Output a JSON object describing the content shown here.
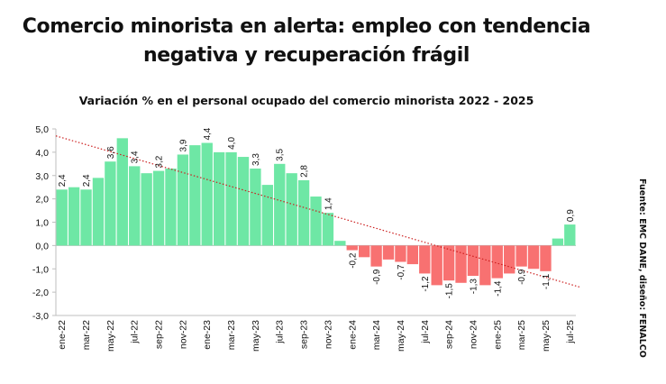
{
  "header": {
    "title_line1": "Comercio minorista en alerta: empleo con tendencia",
    "title_line2": "negativa y recuperación frágil"
  },
  "source": "Fuente: EMC DANE, diseño: FENALCO",
  "colors": {
    "positive": "#6ee7a5",
    "negative": "#f87171",
    "trend": "#cc1f1f",
    "axis": "#bfbfbf"
  },
  "chart_data": {
    "type": "bar",
    "title": "Variación % en el personal ocupado del comercio minorista 2022 - 2025",
    "xlabel": "",
    "ylabel": "",
    "ylim": [
      -3,
      5
    ],
    "yticks": [
      "5,0",
      "4,0",
      "3,0",
      "2,0",
      "1,0",
      "0,0",
      "-1,0",
      "-2,0",
      "-3,0"
    ],
    "ytick_values": [
      5,
      4,
      3,
      2,
      1,
      0,
      -1,
      -2,
      -3
    ],
    "categories": [
      "ene-22",
      "feb-22",
      "mar-22",
      "abr-22",
      "may-22",
      "jun-22",
      "jul-22",
      "ago-22",
      "sep-22",
      "oct-22",
      "nov-22",
      "dic-22",
      "ene-23",
      "feb-23",
      "mar-23",
      "abr-23",
      "may-23",
      "jun-23",
      "jul-23",
      "ago-23",
      "sep-23",
      "oct-23",
      "nov-23",
      "dic-23",
      "ene-24",
      "feb-24",
      "mar-24",
      "abr-24",
      "may-24",
      "jun-24",
      "jul-24",
      "ago-24",
      "sep-24",
      "oct-24",
      "nov-24",
      "dic-24",
      "ene-25",
      "feb-25",
      "mar-25",
      "abr-25",
      "may-25",
      "jun-25",
      "jul-25"
    ],
    "values": [
      2.4,
      2.5,
      2.4,
      2.9,
      3.6,
      4.6,
      3.4,
      3.1,
      3.2,
      3.3,
      3.9,
      4.3,
      4.4,
      4.0,
      4.0,
      3.8,
      3.3,
      2.6,
      3.5,
      3.1,
      2.8,
      2.1,
      1.4,
      0.2,
      -0.2,
      -0.5,
      -0.9,
      -0.6,
      -0.7,
      -0.8,
      -1.2,
      -1.7,
      -1.5,
      -1.6,
      -1.3,
      -1.7,
      -1.4,
      -1.2,
      -0.9,
      -1.0,
      -1.1,
      0.3,
      0.9
    ],
    "data_labels": [
      {
        "index": 0,
        "text": "2,4"
      },
      {
        "index": 2,
        "text": "2,4"
      },
      {
        "index": 4,
        "text": "3,6"
      },
      {
        "index": 6,
        "text": "3,4"
      },
      {
        "index": 8,
        "text": "3,2"
      },
      {
        "index": 10,
        "text": "3,9"
      },
      {
        "index": 12,
        "text": "4,4"
      },
      {
        "index": 14,
        "text": "4,0"
      },
      {
        "index": 16,
        "text": "3,3"
      },
      {
        "index": 18,
        "text": "3,5"
      },
      {
        "index": 20,
        "text": "2,8"
      },
      {
        "index": 22,
        "text": "1,4"
      },
      {
        "index": 24,
        "text": "-0,2"
      },
      {
        "index": 26,
        "text": "-0,9"
      },
      {
        "index": 28,
        "text": "-0,7"
      },
      {
        "index": 30,
        "text": "-1,2"
      },
      {
        "index": 32,
        "text": "-1,5"
      },
      {
        "index": 34,
        "text": "-1,3"
      },
      {
        "index": 36,
        "text": "-1,4"
      },
      {
        "index": 38,
        "text": "-0,9"
      },
      {
        "index": 40,
        "text": "-1,1"
      },
      {
        "index": 42,
        "text": "0,9"
      }
    ],
    "xtick_labels": [
      {
        "index": 0,
        "text": "ene-22"
      },
      {
        "index": 2,
        "text": "mar-22"
      },
      {
        "index": 4,
        "text": "may-22"
      },
      {
        "index": 6,
        "text": "jul-22"
      },
      {
        "index": 8,
        "text": "sep-22"
      },
      {
        "index": 10,
        "text": "nov-22"
      },
      {
        "index": 12,
        "text": "ene-23"
      },
      {
        "index": 14,
        "text": "mar-23"
      },
      {
        "index": 16,
        "text": "may-23"
      },
      {
        "index": 18,
        "text": "jul-23"
      },
      {
        "index": 20,
        "text": "sep-23"
      },
      {
        "index": 22,
        "text": "nov-23"
      },
      {
        "index": 24,
        "text": "ene-24"
      },
      {
        "index": 26,
        "text": "mar-24"
      },
      {
        "index": 28,
        "text": "may-24"
      },
      {
        "index": 30,
        "text": "jul-24"
      },
      {
        "index": 32,
        "text": "sep-24"
      },
      {
        "index": 34,
        "text": "nov-24"
      },
      {
        "index": 36,
        "text": "ene-25"
      },
      {
        "index": 38,
        "text": "mar-25"
      },
      {
        "index": 40,
        "text": "may-25"
      },
      {
        "index": 42,
        "text": "jul-25"
      }
    ],
    "trendline": {
      "style": "dotted",
      "start_value": 4.7,
      "end_value": -1.8
    }
  }
}
